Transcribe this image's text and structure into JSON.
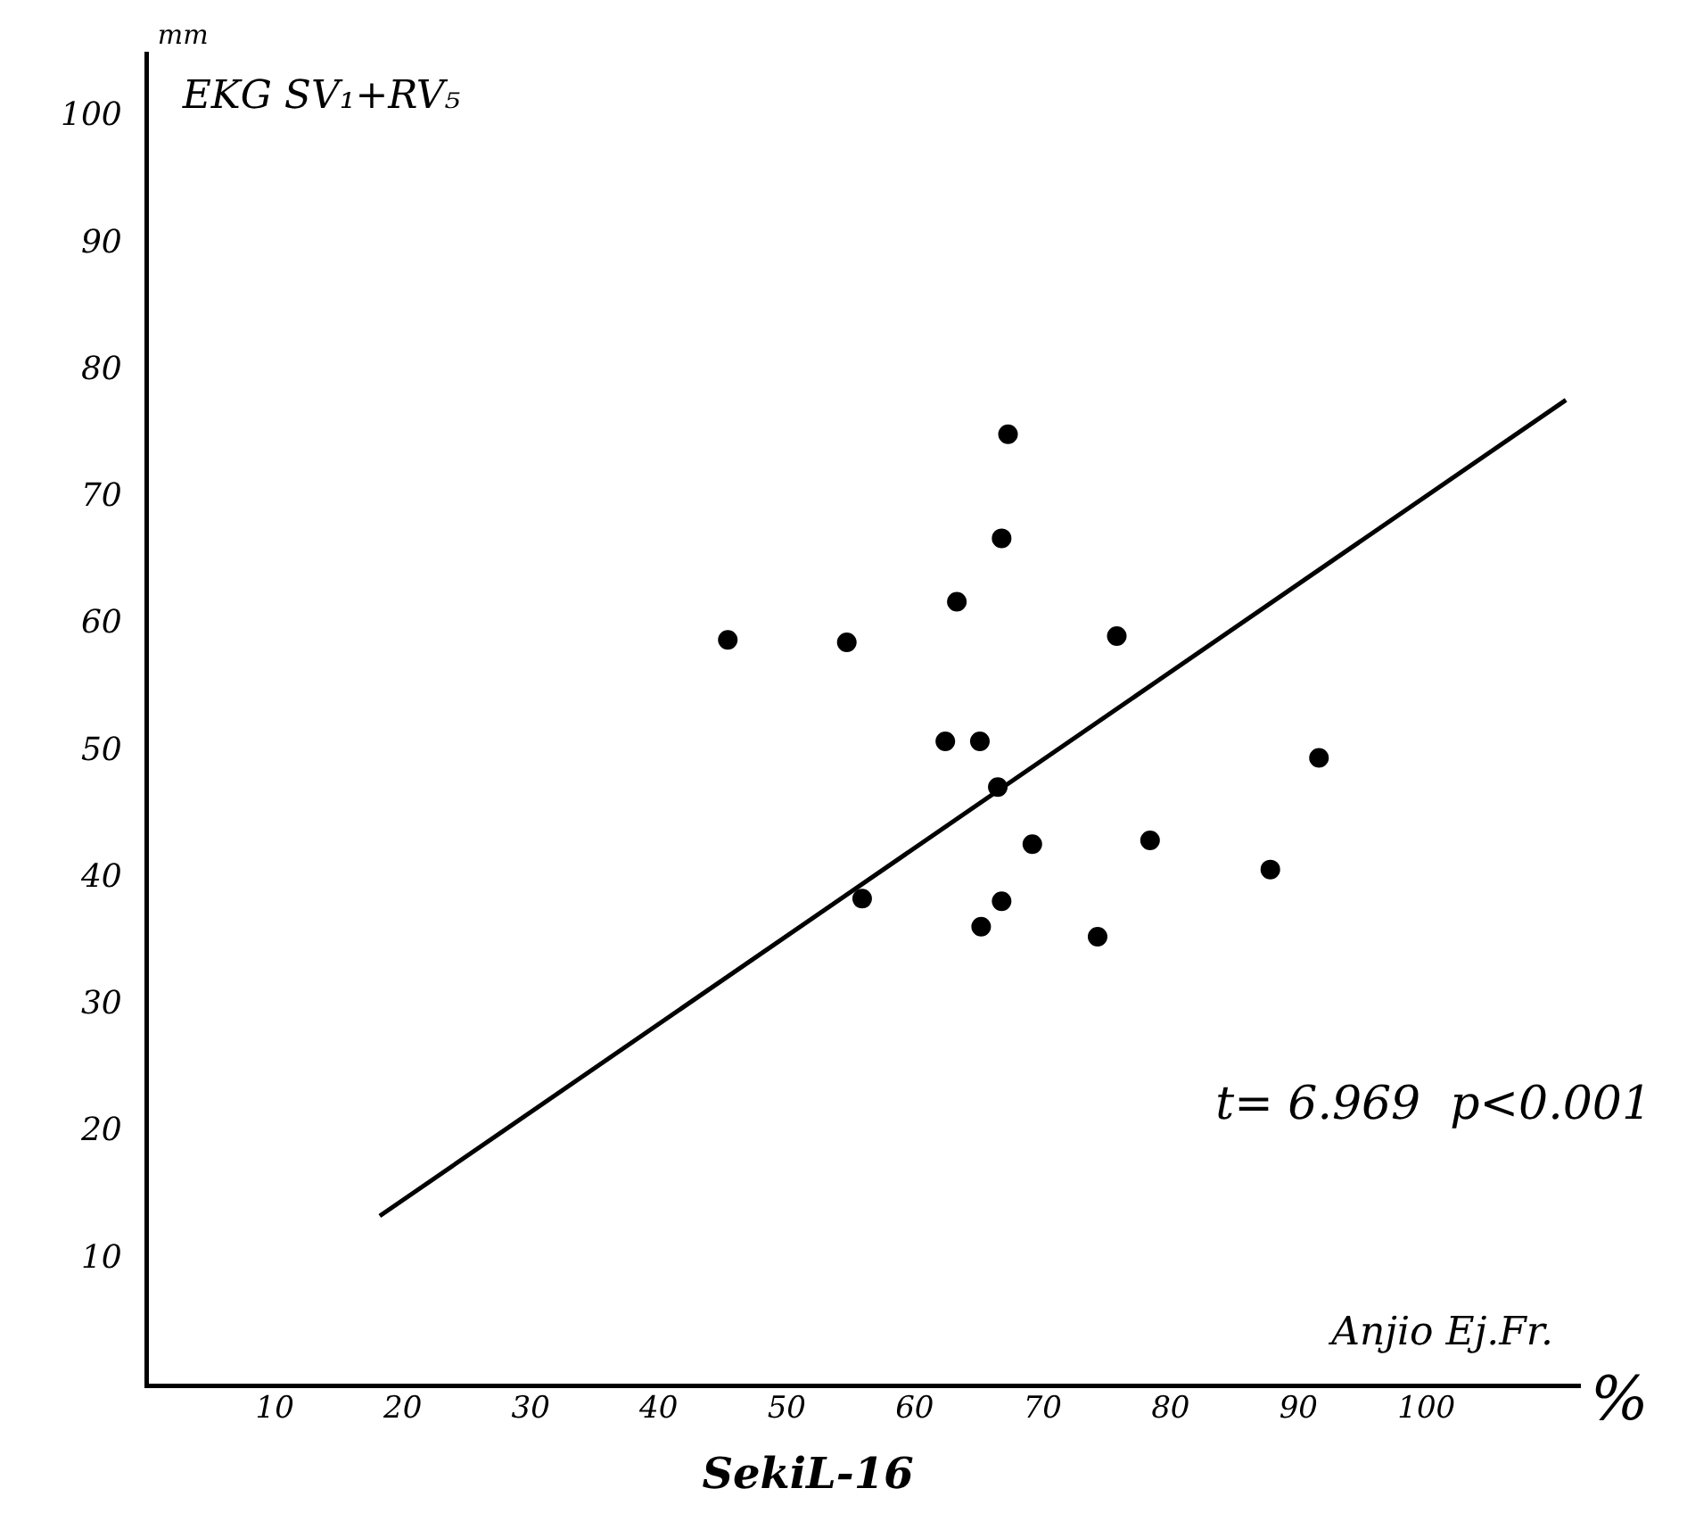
{
  "chart_data": {
    "type": "scatter",
    "title": "SekiL-16",
    "xlabel": "Anjio Ej.Fr.",
    "ylabel": "EKG SV₁+RV₅",
    "annotations": [
      "mm",
      "%",
      "t= 6.969  p<0.001"
    ],
    "series": [
      {
        "type": "scatter",
        "color": "#000000",
        "x": [
          45.4,
          54.7,
          63.3,
          67.3,
          66.8,
          75.8,
          62.4,
          65.1,
          66.5,
          69.2,
          78.4,
          91.6,
          87.8,
          55.9,
          66.8,
          65.2,
          74.3
        ],
        "values": [
          58.8,
          58.6,
          61.8,
          75.0,
          66.8,
          59.1,
          50.8,
          50.8,
          47.2,
          42.7,
          43.0,
          49.5,
          40.7,
          38.4,
          38.2,
          36.2,
          35.4
        ]
      },
      {
        "type": "line",
        "marker": "none",
        "color": "#000000",
        "x": [
          18.2,
          110.9
        ],
        "values": [
          13.4,
          77.7
        ]
      }
    ],
    "marker": "circle",
    "grid": false,
    "xlim": [
      0,
      112
    ],
    "ylim": [
      0,
      105
    ],
    "xticks": [
      10,
      20,
      30,
      40,
      50,
      60,
      70,
      80,
      90,
      100
    ],
    "yticks": [
      10,
      20,
      30,
      40,
      50,
      60,
      70,
      80,
      90,
      100
    ]
  }
}
